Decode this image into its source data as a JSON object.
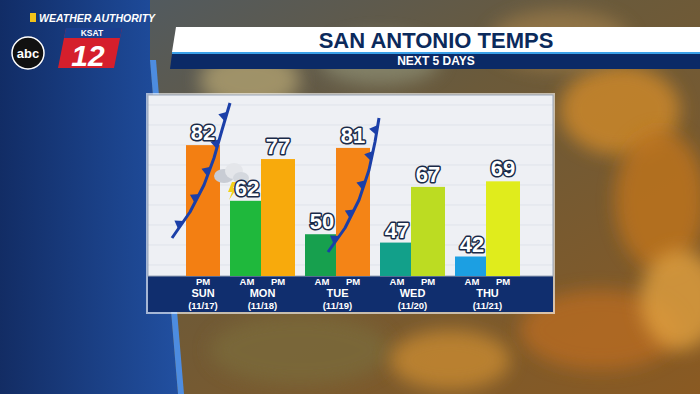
{
  "branding": {
    "network": "abc",
    "station": "KSAT",
    "channel": "12",
    "segment": "WEATHER AUTHORITY"
  },
  "chart_data": {
    "type": "bar",
    "title": "SAN ANTONIO TEMPS",
    "subtitle": "NEXT 5 DAYS",
    "categories": [
      "SUN",
      "MON",
      "TUE",
      "WED",
      "THU"
    ],
    "dates": [
      "(11/17)",
      "(11/18)",
      "(11/19)",
      "(11/20)",
      "(11/21)"
    ],
    "series": [
      {
        "name": "AM",
        "values": [
          null,
          62,
          50,
          47,
          42
        ],
        "colors": [
          null,
          "#1fb83c",
          "#17a04e",
          "#12a08a",
          "#1c9fe2"
        ]
      },
      {
        "name": "PM",
        "values": [
          82,
          77,
          81,
          67,
          69
        ],
        "colors": [
          "#f37f12",
          "#f8aa0c",
          "#f48416",
          "#bcdc22",
          "#e0ec1c"
        ]
      }
    ],
    "ylim": [
      35,
      100
    ],
    "tick_labels": false,
    "grid": false,
    "data_labels": true
  }
}
